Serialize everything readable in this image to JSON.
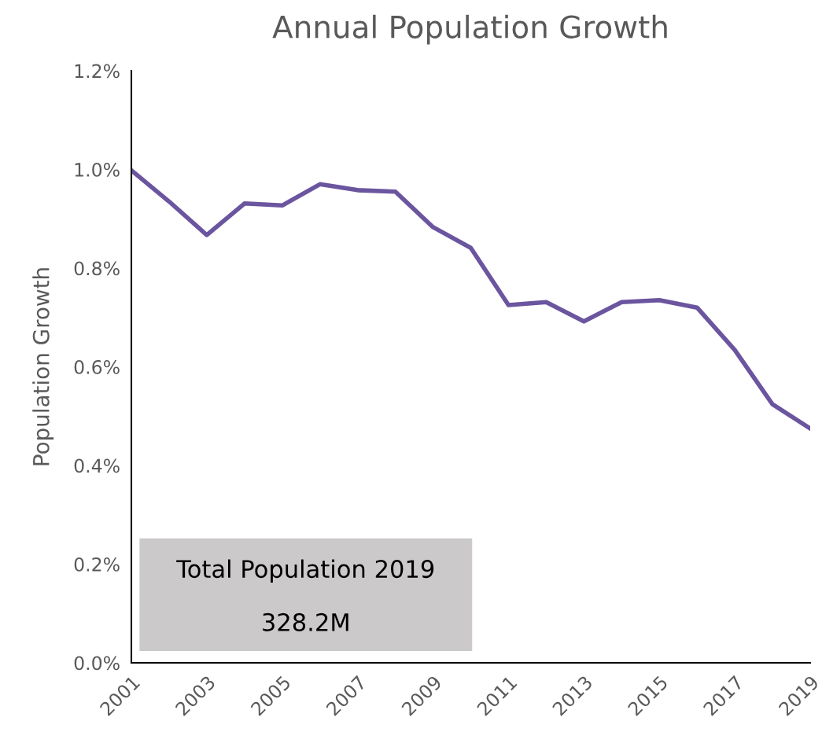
{
  "chart_data": {
    "type": "line",
    "title": "Annual Population Growth",
    "ylabel": "Population Growth",
    "x": [
      2001,
      2002,
      2003,
      2004,
      2005,
      2006,
      2007,
      2008,
      2009,
      2010,
      2011,
      2012,
      2013,
      2014,
      2015,
      2016,
      2017,
      2018,
      2019
    ],
    "series": [
      {
        "color": "#6b559f",
        "values": [
          0.998,
          0.935,
          0.867,
          0.931,
          0.927,
          0.97,
          0.958,
          0.955,
          0.883,
          0.841,
          0.725,
          0.731,
          0.692,
          0.731,
          0.735,
          0.72,
          0.634,
          0.524,
          0.475
        ]
      }
    ],
    "xlim": [
      2001,
      2019
    ],
    "xticks": [
      2001,
      2003,
      2005,
      2007,
      2009,
      2011,
      2013,
      2015,
      2017,
      2019
    ],
    "ylim": [
      0,
      1.2
    ],
    "yticks": [
      {
        "value": 0,
        "label": "0.0%"
      },
      {
        "value": 0.2,
        "label": "0.2%"
      },
      {
        "value": 0.4,
        "label": "0.4%"
      },
      {
        "value": 0.6,
        "label": "0.6%"
      },
      {
        "value": 0.8,
        "label": "0.8%"
      },
      {
        "value": 1.0,
        "label": "1.0%"
      },
      {
        "value": 1.2,
        "label": "1.2%"
      }
    ],
    "annotations": [
      "Total Population 2019",
      "328.2M"
    ],
    "grid": false,
    "marker": "none",
    "line_style": "solid"
  }
}
